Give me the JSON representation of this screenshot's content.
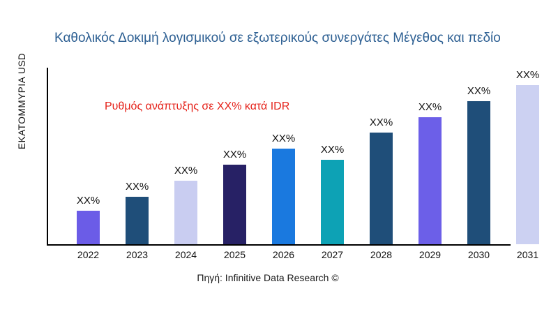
{
  "chart_data": {
    "type": "bar",
    "title": "Καθολικός Δοκιμή λογισμικού σε εξωτερικούς συνεργάτες Μέγεθος και πεδίο",
    "title_color": "#2E6093",
    "ylabel": "ΕΚΑΤΟΜΜΥΡΙΑ USD",
    "annotation": {
      "text": "Ρυθμός ανάπτυξης σε XX% κατά IDR",
      "color": "#E5231B"
    },
    "source": "Πηγή: Infinitive Data Research ©",
    "categories": [
      "2022",
      "2023",
      "2024",
      "2025",
      "2026",
      "2027",
      "2028",
      "2029",
      "2030",
      "2031"
    ],
    "bar_labels": [
      "XX%",
      "XX%",
      "XX%",
      "XX%",
      "XX%",
      "XX%",
      "XX%",
      "XX%",
      "XX%",
      "XX%"
    ],
    "values_relative": [
      21,
      30,
      40,
      50,
      60,
      53,
      70,
      80,
      90,
      100
    ],
    "ylim": [
      0,
      110
    ],
    "grid": false,
    "legend": "none",
    "bar_colors": [
      "#6B5CE7",
      "#1F4E79",
      "#C9CDF1",
      "#272165",
      "#1A79DF",
      "#0DA2B5",
      "#1F4E79",
      "#6C5FE8",
      "#1F4E79",
      "#CCD1F2"
    ],
    "axis_color": "#000000"
  }
}
